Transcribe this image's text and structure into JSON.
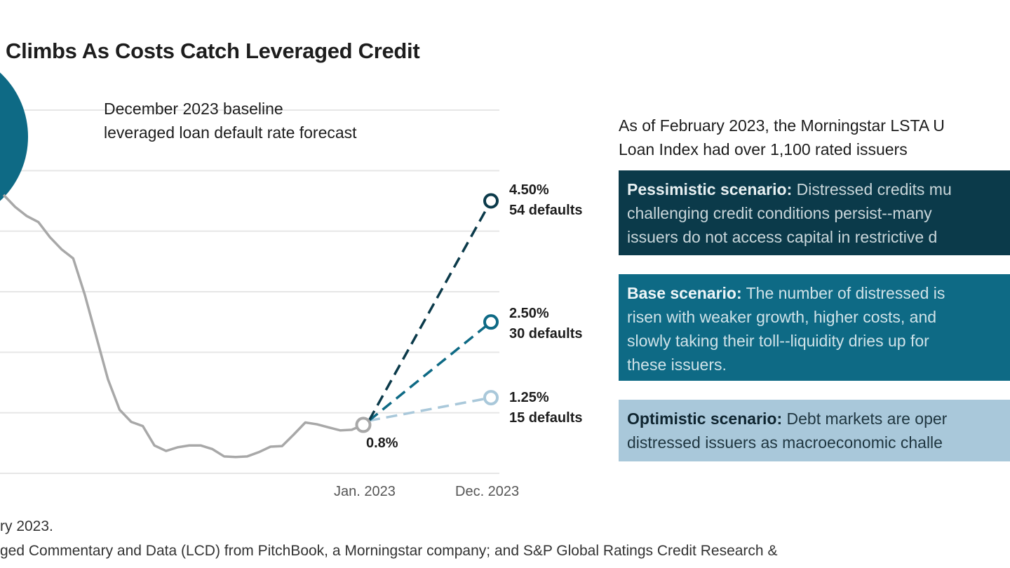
{
  "title": "Climbs As Costs Catch Leveraged Credit",
  "annotation": [
    "December 2023 baseline",
    "leveraged loan default rate forecast"
  ],
  "colors": {
    "history": "#a8a8a8",
    "pessimistic": "#0b3a4a",
    "base": "#0e6a85",
    "optimistic": "#a9c8da",
    "grid": "#e6e6e6"
  },
  "chart_data": {
    "type": "line",
    "yunit": "%",
    "ylim": [
      0,
      6
    ],
    "grid": true,
    "x_tick_labels": [
      "Jan. 2023",
      "Dec. 2023"
    ],
    "history": {
      "x": [
        "2020-06",
        "2020-07",
        "2020-08",
        "2020-09",
        "2020-10",
        "2020-11",
        "2020-12",
        "2021-01",
        "2021-02",
        "2021-03",
        "2021-04",
        "2021-05",
        "2021-06",
        "2021-07",
        "2021-08",
        "2021-09",
        "2021-10",
        "2021-11",
        "2021-12",
        "2022-01",
        "2022-02",
        "2022-03",
        "2022-04",
        "2022-05",
        "2022-06",
        "2022-07",
        "2022-08",
        "2022-09",
        "2022-10",
        "2022-11",
        "2022-12",
        "2023-01"
      ],
      "y": [
        4.6,
        4.4,
        4.25,
        4.15,
        3.9,
        3.7,
        3.55,
        2.95,
        2.25,
        1.55,
        1.05,
        0.85,
        0.78,
        0.46,
        0.37,
        0.43,
        0.46,
        0.46,
        0.4,
        0.28,
        0.27,
        0.28,
        0.35,
        0.44,
        0.45,
        0.64,
        0.84,
        0.81,
        0.76,
        0.71,
        0.72,
        0.8
      ],
      "end_label": "0.8%"
    },
    "forecasts": [
      {
        "scenario": "pessimistic",
        "x": "2023-12",
        "y": 4.5,
        "label": "4.50%",
        "defaults": "54 defaults"
      },
      {
        "scenario": "base",
        "x": "2023-12",
        "y": 2.5,
        "label": "2.50%",
        "defaults": "30 defaults"
      },
      {
        "scenario": "optimistic",
        "x": "2023-12",
        "y": 1.25,
        "label": "1.25%",
        "defaults": "15 defaults"
      }
    ]
  },
  "panel": {
    "intro": [
      "As of February 2023, the Morningstar LSTA U",
      "Loan Index had over 1,100 rated issuers"
    ],
    "pessimistic": {
      "head": "Pessimistic scenario:",
      "lines": [
        " Distressed credits mu",
        "challenging credit conditions persist--many",
        "issuers do not access capital in restrictive d"
      ]
    },
    "base": {
      "head": "Base scenario:",
      "lines": [
        " The number of distressed is",
        "risen with weaker growth, higher costs, and",
        "slowly taking their toll--liquidity dries up for",
        "these issuers."
      ]
    },
    "optimistic": {
      "head": "Optimistic scenario:",
      "lines": [
        " Debt markets are oper",
        "distressed issuers as macroeconomic challe"
      ]
    }
  },
  "footer": [
    "ry 2023.",
    "ged Commentary and Data (LCD) from PitchBook, a Morningstar company; and S&P Global Ratings Credit Research &"
  ]
}
